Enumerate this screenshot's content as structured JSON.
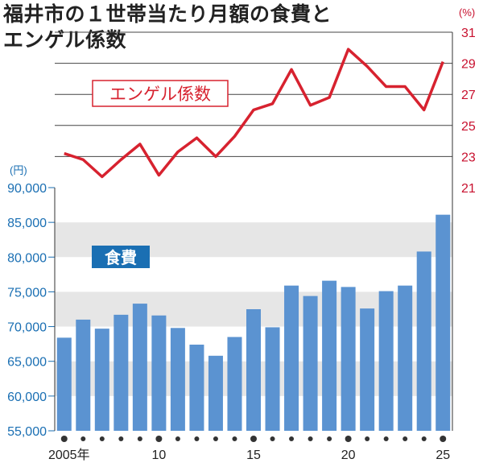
{
  "title_line1": "福井市の１世帯当たり月額の食費と",
  "title_line2": "エンゲル係数",
  "colors": {
    "bar": "#5b93d1",
    "line": "#d7222f",
    "label_bg": "#1a6fb3",
    "band": "#e6e6e6",
    "axis_text_left": "#1a6fb3",
    "axis_text_right": "#c8102e"
  },
  "chart_data": [
    {
      "type": "line",
      "series": [
        {
          "name": "エンゲル係数",
          "values": [
            23.2,
            22.8,
            21.7,
            22.8,
            23.8,
            21.8,
            23.3,
            24.2,
            23.0,
            24.3,
            26.0,
            26.4,
            28.6,
            26.3,
            26.8,
            29.9,
            28.8,
            27.5,
            27.5,
            26.0,
            29.1
          ]
        }
      ],
      "x": [
        2005,
        2006,
        2007,
        2008,
        2009,
        2010,
        2011,
        2012,
        2013,
        2014,
        2015,
        2016,
        2017,
        2018,
        2019,
        2020,
        2021,
        2022,
        2023,
        2024,
        2025
      ],
      "ylim": [
        21,
        31
      ],
      "yticks": [
        "21",
        "23",
        "25",
        "27",
        "29",
        "31"
      ],
      "unit": "(%)",
      "label": "エンゲル係数"
    },
    {
      "type": "bar",
      "series": [
        {
          "name": "食費",
          "values": [
            68400,
            71000,
            69700,
            71700,
            73300,
            71600,
            69800,
            67400,
            65800,
            68500,
            72500,
            69900,
            75900,
            74400,
            76600,
            75700,
            72600,
            75100,
            75900,
            80800,
            86100
          ]
        }
      ],
      "x": [
        2005,
        2006,
        2007,
        2008,
        2009,
        2010,
        2011,
        2012,
        2013,
        2014,
        2015,
        2016,
        2017,
        2018,
        2019,
        2020,
        2021,
        2022,
        2023,
        2024,
        2025
      ],
      "ylim": [
        55000,
        90000
      ],
      "yticks": [
        "55,000",
        "60,000",
        "65,000",
        "70,000",
        "75,000",
        "80,000",
        "85,000",
        "90,000"
      ],
      "unit": "(円)",
      "label": "食費",
      "xtick_labels": [
        "2005年",
        "10",
        "15",
        "20",
        "25"
      ]
    }
  ]
}
